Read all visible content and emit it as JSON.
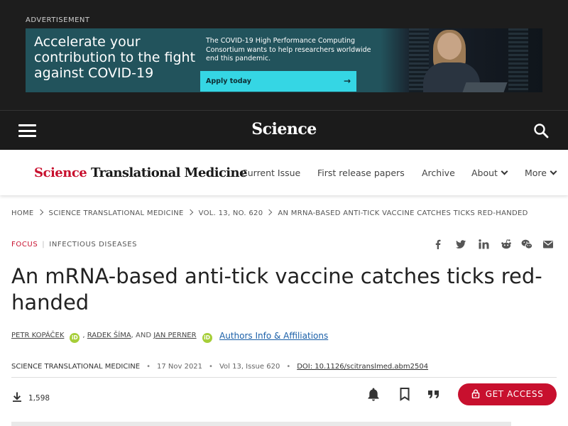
{
  "ad": {
    "label": "ADVERTISEMENT",
    "headline": "Accelerate your contribution to the fight against COVID-19",
    "body": "The COVID-19 High Performance Computing Consortium wants to help researchers worldwide end this pandemic.",
    "cta": "Apply today",
    "cta_arrow": "→",
    "accent_color": "#35d6e4"
  },
  "topbar": {
    "logo": "Science",
    "menu_icon": "hamburger-menu-icon",
    "search_icon": "search-icon"
  },
  "journal": {
    "logo_brand": "Science",
    "logo_rest": "Translational Medicine",
    "brand_color": "#c8102e",
    "nav": [
      "Current Issue",
      "First release papers",
      "Archive",
      "About",
      "More"
    ]
  },
  "breadcrumbs": [
    "HOME",
    "SCIENCE TRANSLATIONAL MEDICINE",
    "VOL. 13, NO. 620",
    "AN MRNA-BASED ANTI-TICK VACCINE CATCHES TICKS RED-HANDED"
  ],
  "article": {
    "category": "FOCUS",
    "category_separator": "|",
    "topic": "INFECTIOUS DISEASES",
    "title": "An mRNA-based anti-tick vaccine catches ticks red-handed",
    "authors": [
      "PETR KOPÁČEK",
      "RADEK ŠÍMA",
      "JAN PERNER"
    ],
    "author_sep_1": ",",
    "author_sep_2": ", AND",
    "orcid_badge": "iD",
    "affiliations_link": "Authors Info & Affiliations",
    "journal_name": "SCIENCE TRANSLATIONAL MEDICINE",
    "date": "17 Nov 2021",
    "volume_issue": "Vol 13, Issue 620",
    "doi": "DOI: 10.1126/scitranslmed.abm2504",
    "meta_separator": "•",
    "downloads": "1,598",
    "access_button": "GET ACCESS"
  },
  "share_icons": [
    "facebook-icon",
    "twitter-icon",
    "linkedin-icon",
    "reddit-icon",
    "wechat-icon",
    "email-icon"
  ],
  "action_icons": [
    "bell-icon",
    "bookmark-icon",
    "quote-icon"
  ]
}
